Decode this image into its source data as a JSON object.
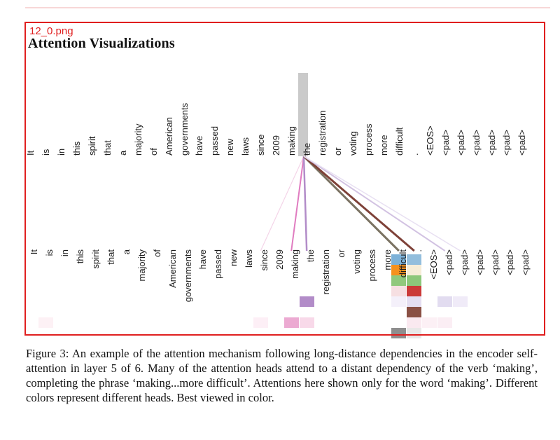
{
  "header": {
    "filename": "12_0.png",
    "title": "Attention Visualizations"
  },
  "figure": {
    "tokens": [
      "It",
      "is",
      "in",
      "this",
      "spirit",
      "that",
      "a",
      "majority",
      "of",
      "American",
      "governments",
      "have",
      "passed",
      "new",
      "laws",
      "since",
      "2009",
      "making",
      "the",
      "registration",
      "or",
      "voting",
      "process",
      "more",
      "difficult",
      ".",
      "<EOS>",
      "<pad>",
      "<pad>",
      "<pad>",
      "<pad>",
      "<pad>",
      "<pad>"
    ],
    "sentence": "It is in this spirit that a majority of American governments have passed new laws since 2009 making the registration or voting process more difficult . <EOS>",
    "highlighted_token": "making",
    "highlighted_index": 17,
    "highlight_color": "#cacaca",
    "head_colors": [
      "#7cb1d8",
      "#f5911e",
      "#90c87c",
      "#cb3a38",
      "#b28cc8",
      "#8a5044",
      "#ecaad2",
      "#8e8e8e"
    ],
    "attention_cells": [
      {
        "token": "It",
        "token_index": 0,
        "head": 6,
        "color": "#fdf1f5"
      },
      {
        "token": "laws",
        "token_index": 14,
        "head": 6,
        "color": "#fdeff6"
      },
      {
        "token": "2009",
        "token_index": 16,
        "head": 6,
        "color": "#ecaad2"
      },
      {
        "token": "making",
        "token_index": 17,
        "head": 4,
        "color": "#b28cc8"
      },
      {
        "token": "making",
        "token_index": 17,
        "head": 6,
        "color": "#f8d9e9"
      },
      {
        "token": "more",
        "token_index": 23,
        "head": 0,
        "color": "#7cb1d8"
      },
      {
        "token": "more",
        "token_index": 23,
        "head": 1,
        "color": "#f5911e"
      },
      {
        "token": "more",
        "token_index": 23,
        "head": 2,
        "color": "#90c87c"
      },
      {
        "token": "more",
        "token_index": 23,
        "head": 3,
        "color": "#f6dfe2"
      },
      {
        "token": "more",
        "token_index": 23,
        "head": 4,
        "color": "#f4f0fa"
      },
      {
        "token": "more",
        "token_index": 23,
        "head": 7,
        "color": "#8e8e8e"
      },
      {
        "token": "difficult",
        "token_index": 24,
        "head": 0,
        "color": "#93bedd"
      },
      {
        "token": "difficult",
        "token_index": 24,
        "head": 1,
        "color": "#f6ecd7"
      },
      {
        "token": "difficult",
        "token_index": 24,
        "head": 2,
        "color": "#8cc77a"
      },
      {
        "token": "difficult",
        "token_index": 24,
        "head": 3,
        "color": "#cb3a38"
      },
      {
        "token": "difficult",
        "token_index": 24,
        "head": 4,
        "color": "#e4def1"
      },
      {
        "token": "difficult",
        "token_index": 24,
        "head": 5,
        "color": "#8a5044"
      },
      {
        "token": "difficult",
        "token_index": 24,
        "head": 6,
        "color": "#fae9f0"
      },
      {
        "token": "difficult",
        "token_index": 24,
        "head": 7,
        "color": "#e9e8e8"
      },
      {
        "token": ".",
        "token_index": 25,
        "head": 6,
        "color": "#fcf0f5"
      },
      {
        "token": "<EOS>",
        "token_index": 26,
        "head": 4,
        "color": "#e2dcf0"
      },
      {
        "token": "<EOS>",
        "token_index": 26,
        "head": 6,
        "color": "#fbeef4"
      },
      {
        "token": "<pad>",
        "token_index": 27,
        "head": 4,
        "color": "#f0ebf8"
      }
    ],
    "attention_lines": [
      {
        "from": "making",
        "to": "laws",
        "to_index": 14,
        "color": "#f4d4e8",
        "width": 1.2
      },
      {
        "from": "making",
        "to": "2009",
        "to_index": 16,
        "color": "#e07cc0",
        "width": 2
      },
      {
        "from": "making",
        "to": "making",
        "to_index": 17,
        "color": "#b28cc8",
        "width": 2.5
      },
      {
        "from": "making",
        "to": "more",
        "to_index": 23,
        "color": "#7a7262",
        "width": 3
      },
      {
        "from": "making",
        "to": "difficult",
        "to_index": 24,
        "color": "#7e4138",
        "width": 3
      },
      {
        "from": "making",
        "to": "<EOS>",
        "to_index": 26,
        "color": "#d2c2e2",
        "width": 2
      },
      {
        "from": "making",
        "to": "<pad>",
        "to_index": 27,
        "color": "#e8e0f2",
        "width": 1.5
      }
    ]
  },
  "caption": {
    "text": "Figure 3:  An example of the attention mechanism following long-distance dependencies in the encoder self-attention in layer 5 of 6. Many of the attention heads attend to a distant dependency of the verb ‘making’, completing the phrase ‘making...more difficult’. Attentions here shown only for the word ‘making’. Different colors represent different heads. Best viewed in color."
  }
}
